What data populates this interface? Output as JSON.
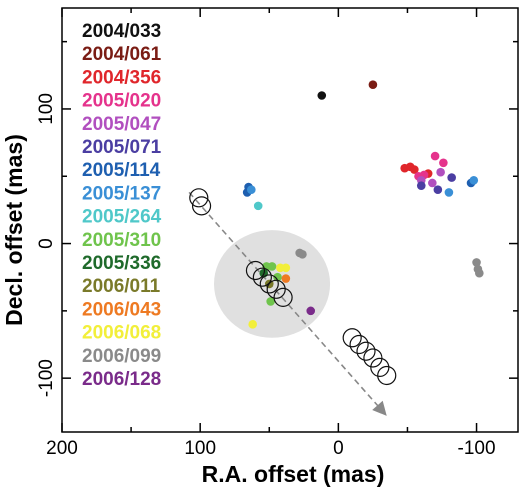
{
  "chart_data": {
    "type": "scatter",
    "title": "",
    "xlabel": "R.A. offset (mas)",
    "ylabel": "Decl. offset (mas)",
    "xlim": [
      200,
      -130
    ],
    "ylim": [
      -140,
      175
    ],
    "x_reversed": true,
    "xticks": [
      200,
      100,
      0,
      -100
    ],
    "yticks": [
      100,
      0,
      -100
    ],
    "tick_labels_x": [
      "200",
      "100",
      "0",
      "-100"
    ],
    "tick_labels_y": [
      "100",
      "0",
      "-100"
    ],
    "grid": false,
    "legend_position": "upper-left",
    "series": [
      {
        "name": "2004/033",
        "color": "#111111",
        "points": [
          [
            12,
            110
          ]
        ]
      },
      {
        "name": "2004/061",
        "color": "#7a1c14",
        "points": [
          [
            -25,
            118
          ]
        ]
      },
      {
        "name": "2004/356",
        "color": "#e0262b",
        "points": [
          [
            -48,
            56
          ],
          [
            -52,
            57
          ],
          [
            -55,
            55
          ],
          [
            -65,
            52
          ]
        ]
      },
      {
        "name": "2005/020",
        "color": "#e5338c",
        "points": [
          [
            -58,
            50
          ],
          [
            -62,
            51
          ],
          [
            -70,
            65
          ],
          [
            -76,
            60
          ]
        ]
      },
      {
        "name": "2005/047",
        "color": "#b14fbf",
        "points": [
          [
            -60,
            47
          ],
          [
            -68,
            45
          ],
          [
            -74,
            53
          ]
        ]
      },
      {
        "name": "2005/071",
        "color": "#4b3ea2",
        "points": [
          [
            -60,
            43
          ],
          [
            -72,
            40
          ],
          [
            -82,
            49
          ]
        ]
      },
      {
        "name": "2005/114",
        "color": "#1e5fb0",
        "points": [
          [
            65,
            42
          ],
          [
            66,
            38
          ],
          [
            64,
            40
          ],
          [
            -96,
            45
          ]
        ]
      },
      {
        "name": "2005/137",
        "color": "#3a8fd6",
        "points": [
          [
            63,
            40
          ],
          [
            -80,
            38
          ],
          [
            -98,
            47
          ]
        ]
      },
      {
        "name": "2005/264",
        "color": "#4fc8c9",
        "points": [
          [
            58,
            28
          ]
        ]
      },
      {
        "name": "2005/310",
        "color": "#6fc44c",
        "points": [
          [
            52,
            -17
          ],
          [
            48,
            -17
          ],
          [
            44,
            -25
          ],
          [
            49,
            -43
          ]
        ]
      },
      {
        "name": "2005/336",
        "color": "#1f6a2b",
        "points": [
          [
            54,
            -22
          ]
        ]
      },
      {
        "name": "2006/011",
        "color": "#7a7a2a",
        "points": [
          [
            50,
            -30
          ]
        ]
      },
      {
        "name": "2006/043",
        "color": "#ee7a22",
        "points": [
          [
            38,
            -26
          ]
        ]
      },
      {
        "name": "2006/068",
        "color": "#f2ef3a",
        "points": [
          [
            42,
            -18
          ],
          [
            38,
            -18
          ],
          [
            62,
            -60
          ]
        ]
      },
      {
        "name": "2006/099",
        "color": "#8a8a8a",
        "points": [
          [
            28,
            -7
          ],
          [
            26,
            -8
          ],
          [
            -100,
            -14
          ],
          [
            -101,
            -19
          ],
          [
            -102,
            -22
          ]
        ]
      },
      {
        "name": "2006/128",
        "color": "#7a2b8a",
        "points": [
          [
            20,
            -50
          ]
        ]
      }
    ],
    "open_circles": [
      [
        101,
        34
      ],
      [
        99,
        28
      ],
      [
        60,
        -20
      ],
      [
        55,
        -25
      ],
      [
        50,
        -30
      ],
      [
        45,
        -34
      ],
      [
        40,
        -40
      ],
      [
        -10,
        -70
      ],
      [
        -15,
        -75
      ],
      [
        -20,
        -80
      ],
      [
        -25,
        -85
      ],
      [
        -30,
        -92
      ],
      [
        -35,
        -98
      ]
    ],
    "gray_ellipse": {
      "center": [
        48,
        -30
      ],
      "rx": 42,
      "ry": 40
    },
    "arrow": {
      "from": [
        108,
        38
      ],
      "to": [
        -35,
        -128
      ]
    }
  }
}
